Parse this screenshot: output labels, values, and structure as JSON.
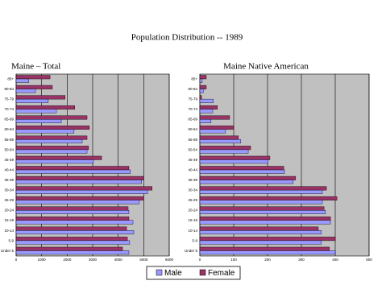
{
  "title": "Population Distribution -- 1989",
  "chart_data": [
    {
      "type": "barh",
      "title": "Maine  – Total",
      "categories": [
        "85+",
        "80-84",
        "75-79",
        "70-74",
        "65-69",
        "60-64",
        "55-59",
        "50-54",
        "45-49",
        "40-44",
        "35-39",
        "30-34",
        "25-29",
        "20-24",
        "15-19",
        "10-14",
        "5-9",
        "Under 5"
      ],
      "series": [
        {
          "name": "Male",
          "color": "#9999ff",
          "values": [
            500,
            760,
            1260,
            1580,
            1770,
            2270,
            2590,
            2780,
            3030,
            4480,
            4920,
            5150,
            4830,
            4420,
            4580,
            4610,
            4450,
            4420
          ]
        },
        {
          "name": "Female",
          "color": "#993366",
          "values": [
            1330,
            1420,
            1920,
            2300,
            2780,
            2870,
            2780,
            2840,
            3350,
            4420,
            4990,
            5330,
            4990,
            4390,
            4420,
            4330,
            4360,
            4170
          ]
        }
      ],
      "xlim": [
        0,
        6000
      ],
      "xticks": [
        0,
        1000,
        2000,
        3000,
        4000,
        5000,
        6000
      ],
      "grid": true
    },
    {
      "type": "barh",
      "title": "Maine Native American",
      "categories": [
        "85+",
        "80-84",
        "75-79",
        "70-74",
        "65-69",
        "60-64",
        "55-59",
        "50-54",
        "45-49",
        "40-44",
        "35-39",
        "30-34",
        "25-29",
        "20-24",
        "15-19",
        "10-14",
        "5-9",
        "Under 5"
      ],
      "series": [
        {
          "name": "Male",
          "color": "#9999ff",
          "values": [
            7,
            10,
            40,
            38,
            33,
            76,
            121,
            143,
            202,
            250,
            276,
            362,
            362,
            371,
            386,
            359,
            359,
            400
          ]
        },
        {
          "name": "Female",
          "color": "#993366",
          "values": [
            19,
            19,
            5,
            52,
            88,
            100,
            114,
            150,
            207,
            248,
            283,
            374,
            405,
            367,
            386,
            350,
            400,
            383
          ]
        }
      ],
      "xlim": [
        0,
        500
      ],
      "xticks": [
        0,
        100,
        200,
        300,
        400,
        500
      ],
      "grid": true
    }
  ]
}
